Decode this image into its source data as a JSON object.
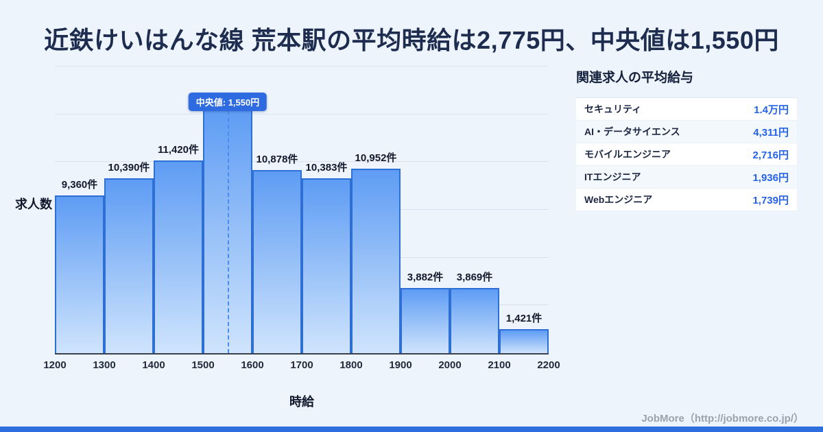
{
  "title": "近鉄けいはんな線 荒本駅の平均時給は2,775円、中央値は1,550円",
  "chart_data": {
    "type": "bar",
    "title": "近鉄けいはんな線 荒本駅の平均時給は2,775円、中央値は1,550円",
    "xlabel": "時給",
    "ylabel": "求人数",
    "x_ticks": [
      "1200",
      "1300",
      "1400",
      "1500",
      "1600",
      "1700",
      "1800",
      "1900",
      "2000",
      "2100",
      "2200"
    ],
    "ylim": [
      0,
      17000
    ],
    "grid": true,
    "legend": "none",
    "bars": [
      {
        "range": [
          1200,
          1300
        ],
        "value": 9360,
        "label": "9,360件"
      },
      {
        "range": [
          1300,
          1400
        ],
        "value": 10390,
        "label": "10,390件"
      },
      {
        "range": [
          1400,
          1500
        ],
        "value": 11420,
        "label": "11,420件"
      },
      {
        "range": [
          1500,
          1600
        ],
        "value": 14500,
        "label": ""
      },
      {
        "range": [
          1600,
          1700
        ],
        "value": 10878,
        "label": "10,878件"
      },
      {
        "range": [
          1700,
          1800
        ],
        "value": 10383,
        "label": "10,383件"
      },
      {
        "range": [
          1800,
          1900
        ],
        "value": 10952,
        "label": "10,952件"
      },
      {
        "range": [
          1900,
          2000
        ],
        "value": 3882,
        "label": "3,882件"
      },
      {
        "range": [
          2000,
          2100
        ],
        "value": 3869,
        "label": "3,869件"
      },
      {
        "range": [
          2100,
          2200
        ],
        "value": 1421,
        "label": "1,421件"
      }
    ],
    "median": {
      "x": 1550,
      "label": "中央値: 1,550円"
    }
  },
  "side_panel": {
    "title": "関連求人の平均給与",
    "rows": [
      {
        "label": "セキュリティ",
        "value": "1.4万円"
      },
      {
        "label": "AI・データサイエンス",
        "value": "4,311円"
      },
      {
        "label": "モバイルエンジニア",
        "value": "2,716円"
      },
      {
        "label": "ITエンジニア",
        "value": "1,936円"
      },
      {
        "label": "Webエンジニア",
        "value": "1,739円"
      }
    ]
  },
  "footer": {
    "credit": "JobMore（http://jobmore.co.jp/）"
  },
  "colors": {
    "background": "#edf4fb",
    "accent": "#2e6fe0",
    "bar_border": "#2e6fd6",
    "bar_gradient_top": "#5e9cf4",
    "bar_gradient_bottom": "#cfe4fd",
    "median_badge": "#2e6be0",
    "value_text": "#2462e8",
    "title_text": "#1d2c4f"
  }
}
